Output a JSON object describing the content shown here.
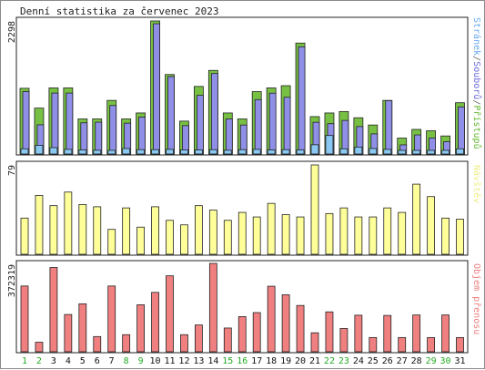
{
  "title": "Denní statistika za červenec 2023",
  "chart_data": [
    {
      "type": "bar",
      "name": "hits-files-pages",
      "ymax_label": "2298",
      "ylim": [
        0,
        2298
      ],
      "right_label_parts": [
        {
          "text": "Stránek",
          "color": "#66aaee"
        },
        {
          "text": "/",
          "color": "#666666"
        },
        {
          "text": "Souborů",
          "color": "#6a6adc"
        },
        {
          "text": "/",
          "color": "#666666"
        },
        {
          "text": "Přístupů",
          "color": "#66bb33"
        }
      ],
      "categories": [
        "1",
        "2",
        "3",
        "4",
        "5",
        "6",
        "7",
        "8",
        "9",
        "10",
        "11",
        "12",
        "13",
        "14",
        "15",
        "16",
        "17",
        "18",
        "19",
        "20",
        "21",
        "22",
        "23",
        "24",
        "25",
        "26",
        "27",
        "28",
        "29",
        "30",
        "31"
      ],
      "series": [
        {
          "name": "Přístupů",
          "color": "#77c044",
          "values": [
            1135,
            793,
            1142,
            1142,
            606,
            606,
            926,
            606,
            709,
            2298,
            1373,
            568,
            1167,
            1444,
            709,
            606,
            1078,
            1142,
            1180,
            1916,
            646,
            709,
            734,
            626,
            501,
            926,
            275,
            425,
            401,
            312,
            886
          ]
        },
        {
          "name": "Souborů",
          "color": "#8f8fe8",
          "values": [
            1078,
            505,
            1053,
            1053,
            539,
            550,
            838,
            533,
            639,
            2250,
            1338,
            490,
            1013,
            1390,
            606,
            501,
            940,
            1051,
            980,
            1852,
            548,
            524,
            580,
            474,
            348,
            922,
            158,
            330,
            276,
            213,
            814
          ]
        },
        {
          "name": "Stránek",
          "color": "#88c8f2",
          "values": [
            90,
            150,
            110,
            80,
            70,
            65,
            60,
            95,
            75,
            75,
            80,
            70,
            70,
            75,
            65,
            75,
            80,
            70,
            75,
            70,
            160,
            320,
            90,
            120,
            95,
            80,
            50,
            60,
            60,
            50,
            90
          ]
        }
      ]
    },
    {
      "type": "bar",
      "name": "visits",
      "ymax_label": "79",
      "ylim": [
        0,
        79
      ],
      "right_label": "Návštěv",
      "color": "#ffff99",
      "categories": [
        "1",
        "2",
        "3",
        "4",
        "5",
        "6",
        "7",
        "8",
        "9",
        "10",
        "11",
        "12",
        "13",
        "14",
        "15",
        "16",
        "17",
        "18",
        "19",
        "20",
        "21",
        "22",
        "23",
        "24",
        "25",
        "26",
        "27",
        "28",
        "29",
        "30",
        "31"
      ],
      "values": [
        32,
        52,
        43,
        55,
        44,
        42,
        22,
        41,
        24,
        42,
        30,
        26,
        43,
        39,
        30,
        37,
        33,
        45,
        35,
        33,
        79,
        36,
        41,
        33,
        33,
        41,
        37,
        62,
        51,
        32,
        31
      ]
    },
    {
      "type": "bar",
      "name": "kbytes",
      "ymax_label": "372319",
      "ylim": [
        0,
        372319
      ],
      "right_label": "Objem přenosu",
      "color": "#f08080",
      "categories": [
        "1",
        "2",
        "3",
        "4",
        "5",
        "6",
        "7",
        "8",
        "9",
        "10",
        "11",
        "12",
        "13",
        "14",
        "15",
        "16",
        "17",
        "18",
        "19",
        "20",
        "21",
        "22",
        "23",
        "24",
        "25",
        "26",
        "27",
        "28",
        "29",
        "30",
        "31"
      ],
      "values": [
        277000,
        40000,
        355000,
        157000,
        202000,
        64000,
        277000,
        72000,
        198000,
        250000,
        320000,
        72000,
        113000,
        372319,
        100000,
        148000,
        165000,
        276000,
        240000,
        195000,
        80000,
        168000,
        98000,
        154000,
        60000,
        153000,
        60000,
        155000,
        60000,
        155000,
        60000
      ]
    }
  ],
  "day_label_colors": [
    "#22aa22",
    "#22aa22",
    "#111111",
    "#111111",
    "#111111",
    "#111111",
    "#111111",
    "#22aa22",
    "#22aa22",
    "#111111",
    "#111111",
    "#111111",
    "#111111",
    "#111111",
    "#22aa22",
    "#22aa22",
    "#111111",
    "#111111",
    "#111111",
    "#111111",
    "#111111",
    "#22aa22",
    "#22aa22",
    "#111111",
    "#111111",
    "#111111",
    "#111111",
    "#111111",
    "#22aa22",
    "#22aa22",
    "#111111"
  ]
}
